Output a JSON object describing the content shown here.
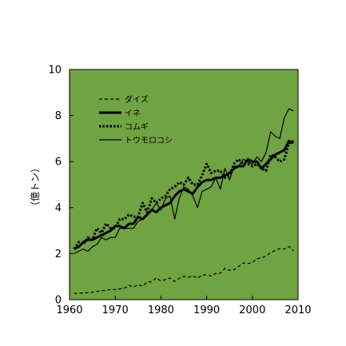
{
  "chart_data": {
    "type": "line",
    "title": "",
    "xlabel": "",
    "ylabel": "（億トン）",
    "xlim": [
      1960,
      2010
    ],
    "ylim": [
      0,
      10
    ],
    "xticks": [
      1960,
      1970,
      1980,
      1990,
      2000,
      2010
    ],
    "yticks": [
      0,
      2,
      4,
      6,
      8,
      10
    ],
    "grid": false,
    "legend_position": "top-left",
    "background_color": "#70A342",
    "line_color": "#000000",
    "series": [
      {
        "name": "ダイズ",
        "style": "dashed",
        "x": [
          1961,
          1962,
          1963,
          1964,
          1965,
          1966,
          1967,
          1968,
          1969,
          1970,
          1971,
          1972,
          1973,
          1974,
          1975,
          1976,
          1977,
          1978,
          1979,
          1980,
          1981,
          1982,
          1983,
          1984,
          1985,
          1986,
          1987,
          1988,
          1989,
          1990,
          1991,
          1992,
          1993,
          1994,
          1995,
          1996,
          1997,
          1998,
          1999,
          2000,
          2001,
          2002,
          2003,
          2004,
          2005,
          2006,
          2007,
          2008,
          2009
        ],
        "y": [
          0.27,
          0.28,
          0.29,
          0.3,
          0.32,
          0.36,
          0.38,
          0.42,
          0.43,
          0.44,
          0.47,
          0.49,
          0.62,
          0.55,
          0.65,
          0.59,
          0.77,
          0.78,
          0.94,
          0.81,
          0.88,
          0.94,
          0.79,
          0.93,
          1.01,
          0.98,
          1.03,
          0.93,
          1.07,
          1.08,
          1.03,
          1.14,
          1.15,
          1.36,
          1.27,
          1.3,
          1.44,
          1.6,
          1.57,
          1.61,
          1.78,
          1.81,
          1.9,
          2.05,
          2.14,
          2.22,
          2.2,
          2.31,
          2.12
        ]
      },
      {
        "name": "イネ",
        "style": "thick",
        "x": [
          1961,
          1962,
          1963,
          1964,
          1965,
          1966,
          1967,
          1968,
          1969,
          1970,
          1971,
          1972,
          1973,
          1974,
          1975,
          1976,
          1977,
          1978,
          1979,
          1980,
          1981,
          1982,
          1983,
          1984,
          1985,
          1986,
          1987,
          1988,
          1989,
          1990,
          1991,
          1992,
          1993,
          1994,
          1995,
          1996,
          1997,
          1998,
          1999,
          2000,
          2001,
          2002,
          2003,
          2004,
          2005,
          2006,
          2007,
          2008,
          2009
        ],
        "y": [
          2.2,
          2.3,
          2.5,
          2.6,
          2.6,
          2.7,
          2.8,
          2.9,
          3.0,
          3.2,
          3.2,
          3.1,
          3.3,
          3.3,
          3.6,
          3.5,
          3.7,
          3.9,
          3.8,
          4.0,
          4.1,
          4.2,
          4.5,
          4.7,
          4.8,
          4.7,
          4.6,
          4.9,
          5.1,
          5.2,
          5.2,
          5.3,
          5.3,
          5.4,
          5.5,
          5.7,
          5.8,
          5.8,
          6.1,
          6.0,
          6.0,
          5.7,
          5.9,
          6.1,
          6.3,
          6.4,
          6.5,
          6.9,
          6.8
        ]
      },
      {
        "name": "コムギ",
        "style": "dotted",
        "x": [
          1961,
          1962,
          1963,
          1964,
          1965,
          1966,
          1967,
          1968,
          1969,
          1970,
          1971,
          1972,
          1973,
          1974,
          1975,
          1976,
          1977,
          1978,
          1979,
          1980,
          1981,
          1982,
          1983,
          1984,
          1985,
          1986,
          1987,
          1988,
          1989,
          1990,
          1991,
          1992,
          1993,
          1994,
          1995,
          1996,
          1997,
          1998,
          1999,
          2000,
          2001,
          2002,
          2003,
          2004,
          2005,
          2006,
          2007,
          2008,
          2009
        ],
        "y": [
          2.2,
          2.5,
          2.4,
          2.7,
          2.6,
          3.1,
          2.9,
          3.3,
          3.1,
          3.1,
          3.5,
          3.5,
          3.7,
          3.6,
          3.6,
          4.2,
          3.8,
          4.4,
          4.2,
          4.4,
          4.5,
          4.8,
          4.9,
          5.1,
          5.0,
          5.3,
          5.0,
          5.0,
          5.4,
          5.9,
          5.5,
          5.6,
          5.6,
          5.3,
          5.4,
          5.9,
          6.1,
          5.9,
          5.9,
          5.8,
          5.9,
          5.7,
          5.6,
          6.3,
          6.2,
          6.0,
          6.1,
          6.8,
          6.9
        ]
      },
      {
        "name": "トウモロコシ",
        "style": "solid",
        "x": [
          1961,
          1962,
          1963,
          1964,
          1965,
          1966,
          1967,
          1968,
          1969,
          1970,
          1971,
          1972,
          1973,
          1974,
          1975,
          1976,
          1977,
          1978,
          1979,
          1980,
          1981,
          1982,
          1983,
          1984,
          1985,
          1986,
          1987,
          1988,
          1989,
          1990,
          1991,
          1992,
          1993,
          1994,
          1995,
          1996,
          1997,
          1998,
          1999,
          2000,
          2001,
          2002,
          2003,
          2004,
          2005,
          2006,
          2007,
          2008,
          2009
        ],
        "y": [
          2.0,
          2.1,
          2.2,
          2.1,
          2.3,
          2.4,
          2.7,
          2.6,
          2.7,
          2.7,
          3.1,
          3.1,
          3.1,
          3.1,
          3.4,
          3.5,
          3.7,
          3.9,
          4.2,
          3.9,
          4.4,
          4.5,
          3.5,
          4.4,
          4.9,
          4.8,
          4.5,
          4.0,
          4.7,
          4.8,
          4.9,
          5.3,
          4.8,
          5.7,
          5.2,
          5.8,
          5.8,
          6.1,
          6.0,
          5.9,
          6.2,
          6.0,
          6.4,
          7.3,
          7.1,
          7.0,
          7.9,
          8.3,
          8.2
        ]
      }
    ]
  }
}
